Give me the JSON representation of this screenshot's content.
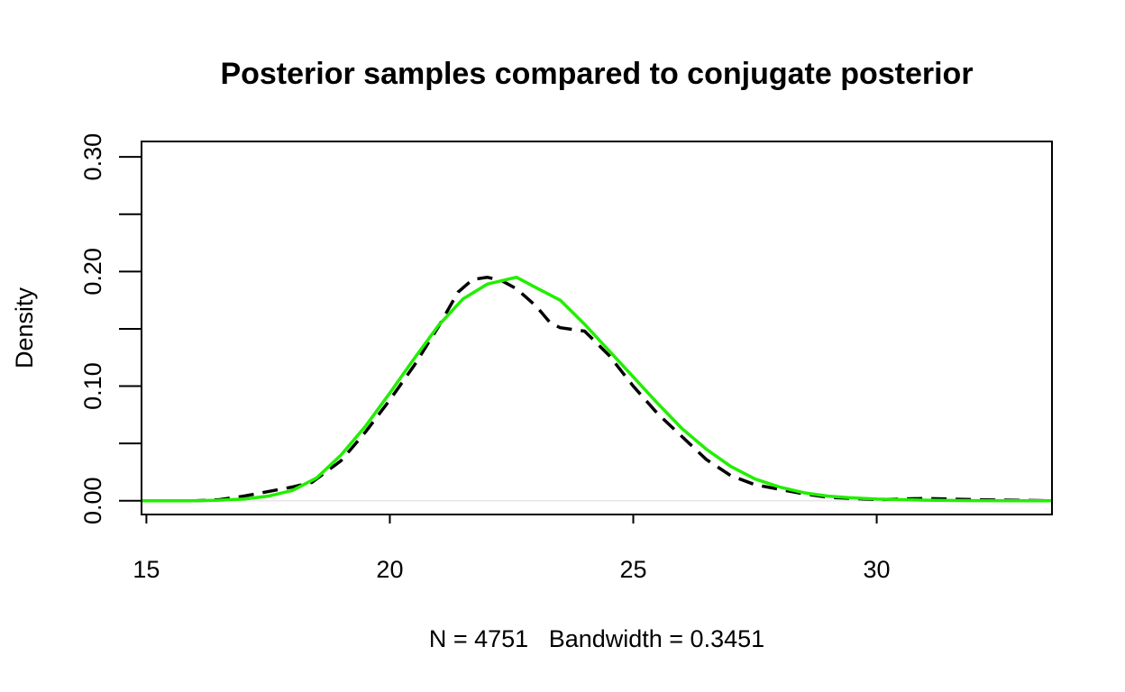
{
  "chart_data": {
    "type": "line",
    "title": "Posterior samples compared to conjugate posterior",
    "xlabel": "N = 4751   Bandwidth = 0.3451",
    "ylabel": "Density",
    "xlim": [
      14.9,
      33.6
    ],
    "ylim": [
      -0.012,
      0.3135
    ],
    "x_ticks": [
      15,
      20,
      25,
      30
    ],
    "x_tick_labels": [
      "15",
      "20",
      "25",
      "30"
    ],
    "y_ticks": [
      0.0,
      0.05,
      0.1,
      0.15,
      0.2,
      0.25,
      0.3
    ],
    "y_tick_labels": [
      "0.00",
      "",
      "0.10",
      "",
      "0.20",
      "",
      "0.30"
    ],
    "grid": false,
    "series": [
      {
        "style": "dashed",
        "color": "#000000",
        "x": [
          14.9,
          16.0,
          16.5,
          17.0,
          17.5,
          18.0,
          18.4,
          19.0,
          19.5,
          20.0,
          20.5,
          21.0,
          21.4,
          21.7,
          22.0,
          22.3,
          22.6,
          23.0,
          23.3,
          23.5,
          24.0,
          24.5,
          25.0,
          25.5,
          26.0,
          26.5,
          27.0,
          27.5,
          28.0,
          28.5,
          29.0,
          30.0,
          31.0,
          32.0,
          33.6
        ],
        "y": [
          0.0,
          0.0,
          0.001,
          0.004,
          0.008,
          0.012,
          0.016,
          0.035,
          0.06,
          0.088,
          0.118,
          0.152,
          0.182,
          0.193,
          0.195,
          0.192,
          0.185,
          0.17,
          0.155,
          0.151,
          0.148,
          0.127,
          0.1,
          0.076,
          0.056,
          0.036,
          0.022,
          0.014,
          0.01,
          0.006,
          0.003,
          0.001,
          0.002,
          0.001,
          0.0
        ]
      },
      {
        "style": "solid",
        "color": "#22ee00",
        "x": [
          14.9,
          15.5,
          16.0,
          16.5,
          17.0,
          17.5,
          18.0,
          18.5,
          19.0,
          19.5,
          20.0,
          20.5,
          21.0,
          21.5,
          22.0,
          22.3,
          22.6,
          23.0,
          23.5,
          24.0,
          24.5,
          25.0,
          25.5,
          26.0,
          26.5,
          27.0,
          27.5,
          28.0,
          28.5,
          29.0,
          29.5,
          30.0,
          31.0,
          32.0,
          33.6
        ],
        "y": [
          0.0,
          0.0,
          0.0,
          0.0005,
          0.0015,
          0.004,
          0.009,
          0.02,
          0.04,
          0.065,
          0.094,
          0.124,
          0.153,
          0.176,
          0.189,
          0.192,
          0.195,
          0.186,
          0.175,
          0.154,
          0.131,
          0.108,
          0.085,
          0.063,
          0.045,
          0.03,
          0.019,
          0.012,
          0.007,
          0.004,
          0.0025,
          0.0015,
          0.0005,
          0.0001,
          0.0
        ]
      }
    ]
  }
}
